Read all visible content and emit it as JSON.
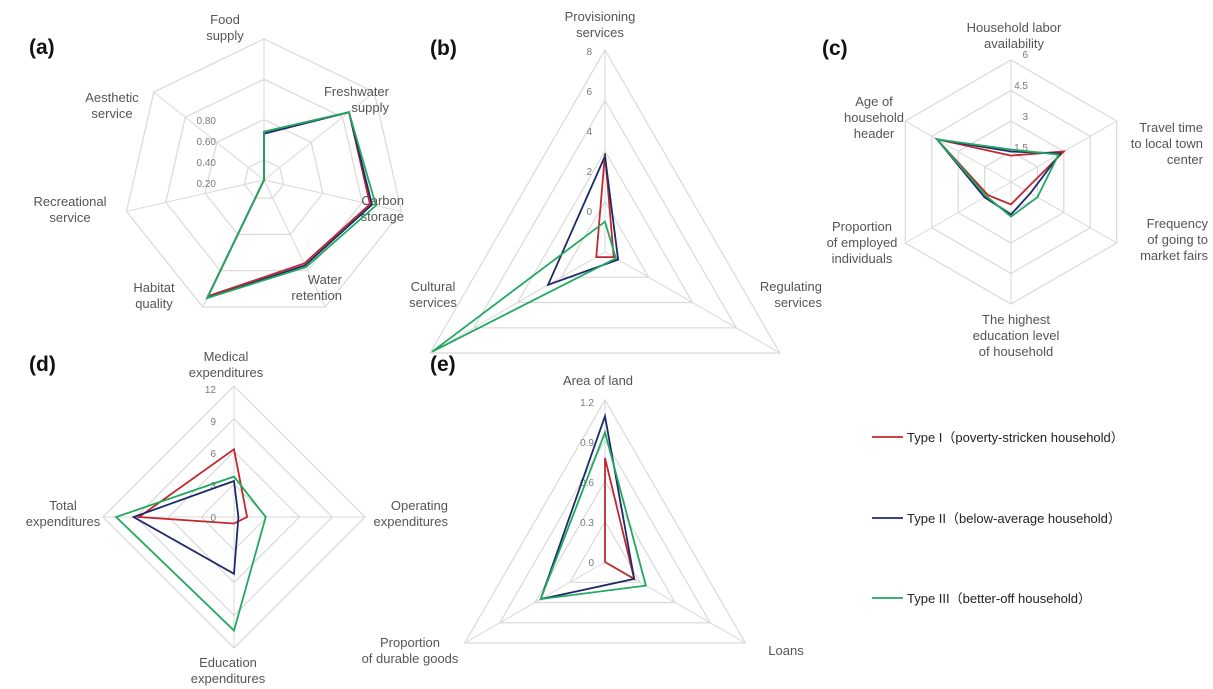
{
  "colors": {
    "type1": "#c0282d",
    "type2": "#1f2a6b",
    "type3": "#21a861",
    "grid": "#d9d9d9"
  },
  "legend": [
    {
      "label": "Type I（poverty-stricken household）",
      "color": "#c0282d"
    },
    {
      "label": "Type II（below-average household）",
      "color": "#1f2a6b"
    },
    {
      "label": "Type III（better-off household）",
      "color": "#21a861"
    }
  ],
  "chart_data": [
    {
      "type": "radar",
      "panel": "(a)",
      "axes": [
        [
          "Food",
          "supply"
        ],
        [
          "Freshwater",
          "supply"
        ],
        [
          "Carbon",
          "storage"
        ],
        [
          "Water",
          "retention"
        ],
        [
          "Habitat",
          "quality"
        ],
        [
          "Recreational",
          "service"
        ],
        [
          "Aesthetic",
          "service"
        ]
      ],
      "ticks": [
        "0.20",
        "0.40",
        "0.60",
        "0.80"
      ],
      "rmin": 0.1,
      "rmax": 0.8,
      "grid_levels": [
        0.2,
        0.4,
        0.6,
        0.8
      ],
      "series": [
        {
          "values": [
            0.34,
            0.64,
            0.64,
            0.56,
            0.74,
            0.02,
            0.02
          ]
        },
        {
          "values": [
            0.33,
            0.64,
            0.65,
            0.57,
            0.75,
            0.03,
            0.03
          ]
        },
        {
          "values": [
            0.34,
            0.64,
            0.67,
            0.58,
            0.75,
            0.03,
            0.03
          ]
        }
      ]
    },
    {
      "type": "radar",
      "panel": "(b)",
      "axes": [
        [
          "Provisioning",
          "services"
        ],
        [
          "Regulating",
          "services"
        ],
        [
          "Cultural",
          "services"
        ]
      ],
      "ticks": [
        "0",
        "2",
        "4",
        "6",
        "8"
      ],
      "rmin": 0,
      "rmax": 8,
      "grid_levels": [
        0,
        2,
        4,
        6,
        8
      ],
      "series": [
        {
          "values": [
            3.9,
            0.4,
            0.4
          ]
        },
        {
          "values": [
            3.8,
            0.6,
            2.6
          ]
        },
        {
          "values": [
            1.2,
            0.5,
            7.9
          ]
        }
      ]
    },
    {
      "type": "radar",
      "panel": "(c)",
      "axes": [
        [
          "Household labor",
          "availability"
        ],
        [
          "Travel time",
          "to local town",
          "center"
        ],
        [
          "Frequency",
          "of going to",
          "market fairs"
        ],
        [
          "The highest",
          "education level",
          "of household"
        ],
        [
          "Proportion",
          "of employed",
          "individuals"
        ],
        [
          "Age of",
          "household",
          "header"
        ]
      ],
      "ticks": [
        "1.5",
        "3",
        "4.5",
        "6"
      ],
      "rmin": 0,
      "rmax": 6,
      "grid_levels": [
        1.5,
        3,
        4.5,
        6
      ],
      "series": [
        {
          "values": [
            1.3,
            3.0,
            0.8,
            1.1,
            1.3,
            4.2
          ]
        },
        {
          "values": [
            1.5,
            2.8,
            1.1,
            1.6,
            1.5,
            4.2
          ]
        },
        {
          "values": [
            1.6,
            2.7,
            1.5,
            1.7,
            1.4,
            4.2
          ]
        }
      ]
    },
    {
      "type": "radar",
      "panel": "(d)",
      "axes": [
        [
          "Medical",
          "expenditures"
        ],
        [
          "Operating",
          "expenditures"
        ],
        [
          "Education",
          "expenditures"
        ],
        [
          "Total",
          "expenditures"
        ]
      ],
      "ticks": [
        "0",
        "3",
        "6",
        "9",
        "12"
      ],
      "rmin": 0,
      "rmax": 12,
      "grid_levels": [
        0,
        3,
        6,
        9,
        12
      ],
      "series": [
        {
          "values": [
            6.2,
            1.2,
            0.6,
            8.7
          ]
        },
        {
          "values": [
            3.3,
            0.4,
            5.2,
            9.2
          ]
        },
        {
          "values": [
            3.7,
            2.9,
            10.4,
            10.8
          ]
        }
      ]
    },
    {
      "type": "radar",
      "panel": "(e)",
      "axes": [
        [
          "Area of land"
        ],
        [
          "Loans"
        ],
        [
          "Proportion",
          "of durable goods"
        ]
      ],
      "ticks": [
        "0",
        "0.3",
        "0.6",
        "0.9",
        "1.2"
      ],
      "rmin": 0,
      "rmax": 1.2,
      "grid_levels": [
        0,
        0.3,
        0.6,
        0.9,
        1.2
      ],
      "series": [
        {
          "values": [
            0.77,
            0.25,
            0.0
          ]
        },
        {
          "values": [
            1.08,
            0.25,
            0.55
          ]
        },
        {
          "values": [
            0.96,
            0.35,
            0.55
          ]
        }
      ]
    }
  ]
}
